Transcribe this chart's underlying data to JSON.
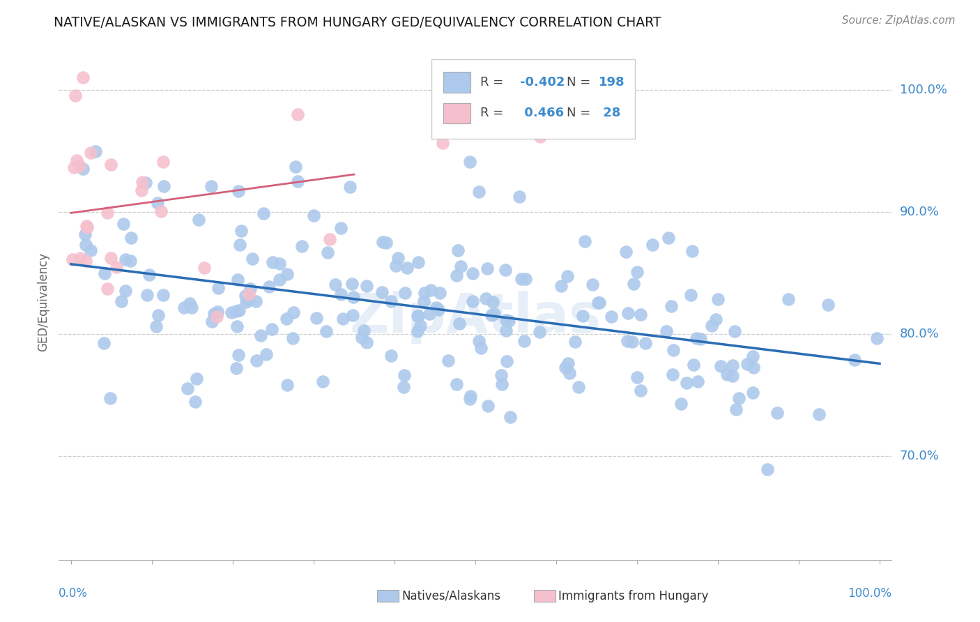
{
  "title": "NATIVE/ALASKAN VS IMMIGRANTS FROM HUNGARY GED/EQUIVALENCY CORRELATION CHART",
  "source": "Source: ZipAtlas.com",
  "ylabel": "GED/Equivalency",
  "ytick_labels": [
    "70.0%",
    "80.0%",
    "90.0%",
    "100.0%"
  ],
  "ytick_values": [
    0.7,
    0.8,
    0.9,
    1.0
  ],
  "legend_r_blue": "-0.402",
  "legend_n_blue": "198",
  "legend_r_pink": "0.466",
  "legend_n_pink": "28",
  "blue_color": "#adc9eb",
  "blue_line_color": "#2a6db5",
  "pink_color": "#f5c0ce",
  "pink_line_color": "#d4607a",
  "watermark": "ZipAtlas"
}
